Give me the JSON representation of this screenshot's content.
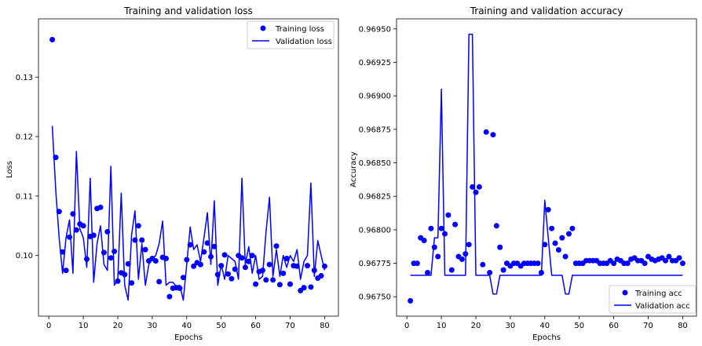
{
  "chart_data": [
    {
      "type": "line",
      "title": "Training and validation loss",
      "xlabel": "Epochs",
      "ylabel": "Loss",
      "xlim": [
        -3,
        84
      ],
      "ylim": [
        0.0898,
        0.1398
      ],
      "xticks": [
        0,
        10,
        20,
        30,
        40,
        50,
        60,
        70,
        80
      ],
      "yticks": [
        0.1,
        0.11,
        0.12,
        0.13
      ],
      "ytick_labels": [
        "0.10",
        "0.11",
        "0.12",
        "0.13"
      ],
      "grid": false,
      "legend_position": "top-right",
      "colors": {
        "series": "#0000ff"
      },
      "series": [
        {
          "name": "Training loss",
          "style": "markers",
          "x": [
            1,
            2,
            3,
            4,
            5,
            6,
            7,
            8,
            9,
            10,
            11,
            12,
            13,
            14,
            15,
            16,
            17,
            18,
            19,
            20,
            21,
            22,
            23,
            24,
            25,
            26,
            27,
            28,
            29,
            30,
            31,
            32,
            33,
            34,
            35,
            36,
            37,
            38,
            39,
            40,
            41,
            42,
            43,
            44,
            45,
            46,
            47,
            48,
            49,
            50,
            51,
            52,
            53,
            54,
            55,
            56,
            57,
            58,
            59,
            60,
            61,
            62,
            63,
            64,
            65,
            66,
            67,
            68,
            69,
            70,
            71,
            72,
            73,
            74,
            75,
            76,
            77,
            78,
            79,
            80
          ],
          "y": [
            0.1363,
            0.1165,
            0.1074,
            0.1006,
            0.0975,
            0.1031,
            0.107,
            0.1043,
            0.1053,
            0.105,
            0.0994,
            0.1032,
            0.1034,
            0.1079,
            0.1081,
            0.1005,
            0.104,
            0.0996,
            0.1007,
            0.0957,
            0.0971,
            0.0968,
            0.0986,
            0.0954,
            0.1026,
            0.105,
            0.1026,
            0.101,
            0.0991,
            0.0995,
            0.0991,
            0.0956,
            0.0997,
            0.0995,
            0.0931,
            0.0945,
            0.0946,
            0.0945,
            0.0963,
            0.0993,
            0.1018,
            0.0982,
            0.0988,
            0.0985,
            0.1006,
            0.1021,
            0.0998,
            0.1015,
            0.0968,
            0.0983,
            0.1001,
            0.0969,
            0.0961,
            0.0977,
            0.1,
            0.0996,
            0.098,
            0.099,
            0.1,
            0.0952,
            0.0973,
            0.0975,
            0.0959,
            0.0985,
            0.0959,
            0.1016,
            0.0951,
            0.097,
            0.0995,
            0.0952,
            0.0983,
            0.0982,
            0.0941,
            0.0946,
            0.0983,
            0.0947,
            0.0975,
            0.0962,
            0.0966,
            0.0982
          ]
        },
        {
          "name": "Validation loss",
          "style": "line",
          "x": [
            1,
            2,
            3,
            4,
            5,
            6,
            7,
            8,
            9,
            10,
            11,
            12,
            13,
            14,
            15,
            16,
            17,
            18,
            19,
            20,
            21,
            22,
            23,
            24,
            25,
            26,
            27,
            28,
            29,
            30,
            31,
            32,
            33,
            34,
            35,
            36,
            37,
            38,
            39,
            40,
            41,
            42,
            43,
            44,
            45,
            46,
            47,
            48,
            49,
            50,
            51,
            52,
            53,
            54,
            55,
            56,
            57,
            58,
            59,
            60,
            61,
            62,
            63,
            64,
            65,
            66,
            67,
            68,
            69,
            70,
            71,
            72,
            73,
            74,
            75,
            76,
            77,
            78,
            79,
            80
          ],
          "y": [
            0.1218,
            0.111,
            0.103,
            0.097,
            0.103,
            0.106,
            0.097,
            0.1175,
            0.1045,
            0.103,
            0.098,
            0.113,
            0.0955,
            0.102,
            0.105,
            0.0985,
            0.0975,
            0.115,
            0.095,
            0.096,
            0.1105,
            0.095,
            0.0925,
            0.1035,
            0.1075,
            0.096,
            0.102,
            0.095,
            0.0985,
            0.0995,
            0.1,
            0.102,
            0.1058,
            0.095,
            0.0955,
            0.0955,
            0.0948,
            0.095,
            0.0925,
            0.0985,
            0.1048,
            0.101,
            0.1018,
            0.099,
            0.103,
            0.1072,
            0.0985,
            0.1092,
            0.095,
            0.0985,
            0.096,
            0.1,
            0.0995,
            0.099,
            0.096,
            0.113,
            0.0985,
            0.1015,
            0.097,
            0.1,
            0.096,
            0.0965,
            0.104,
            0.1098,
            0.0965,
            0.101,
            0.0965,
            0.1,
            0.098,
            0.1,
            0.099,
            0.101,
            0.096,
            0.099,
            0.1,
            0.1122,
            0.0965,
            0.1025,
            0.1,
            0.0975
          ]
        }
      ]
    },
    {
      "type": "line",
      "title": "Training and validation accuracy",
      "xlabel": "Epochs",
      "ylabel": "Accuracy",
      "xlim": [
        -3,
        84
      ],
      "ylim": [
        0.967355,
        0.969575
      ],
      "xticks": [
        0,
        10,
        20,
        30,
        40,
        50,
        60,
        70,
        80
      ],
      "yticks": [
        0.9675,
        0.96775,
        0.968,
        0.96825,
        0.9685,
        0.96875,
        0.969,
        0.96925,
        0.9695
      ],
      "ytick_labels": [
        "0.96750",
        "0.96775",
        "0.96800",
        "0.96825",
        "0.96850",
        "0.96875",
        "0.96900",
        "0.96925",
        "0.96950"
      ],
      "grid": false,
      "legend_position": "bottom-right",
      "colors": {
        "series": "#0000ff"
      },
      "series": [
        {
          "name": "Training acc",
          "style": "markers",
          "x": [
            1,
            2,
            3,
            4,
            5,
            6,
            7,
            8,
            9,
            10,
            11,
            12,
            13,
            14,
            15,
            16,
            17,
            18,
            19,
            20,
            21,
            22,
            23,
            24,
            25,
            26,
            27,
            28,
            29,
            30,
            31,
            32,
            33,
            34,
            35,
            36,
            37,
            38,
            39,
            40,
            41,
            42,
            43,
            44,
            45,
            46,
            47,
            48,
            49,
            50,
            51,
            52,
            53,
            54,
            55,
            56,
            57,
            58,
            59,
            60,
            61,
            62,
            63,
            64,
            65,
            66,
            67,
            68,
            69,
            70,
            71,
            72,
            73,
            74,
            75,
            76,
            77,
            78,
            79,
            80
          ],
          "y": [
            0.96747,
            0.96775,
            0.96775,
            0.96794,
            0.96792,
            0.96768,
            0.96801,
            0.96787,
            0.9678,
            0.96801,
            0.96797,
            0.96811,
            0.9677,
            0.96804,
            0.9678,
            0.96778,
            0.96782,
            0.96789,
            0.96832,
            0.96828,
            0.96832,
            0.96774,
            0.96873,
            0.96768,
            0.96871,
            0.96803,
            0.96787,
            0.9677,
            0.96775,
            0.96773,
            0.96775,
            0.96775,
            0.96773,
            0.96775,
            0.96775,
            0.96775,
            0.96775,
            0.96775,
            0.96768,
            0.96789,
            0.96815,
            0.96801,
            0.9679,
            0.96785,
            0.96794,
            0.9678,
            0.96797,
            0.96801,
            0.96775,
            0.96775,
            0.96775,
            0.96777,
            0.96777,
            0.96777,
            0.96777,
            0.96775,
            0.96775,
            0.96775,
            0.96777,
            0.96775,
            0.96778,
            0.96777,
            0.96775,
            0.96775,
            0.96778,
            0.96779,
            0.96777,
            0.96777,
            0.96775,
            0.9678,
            0.96778,
            0.96777,
            0.96778,
            0.96779,
            0.96777,
            0.9678,
            0.96777,
            0.96777,
            0.96779,
            0.96775
          ]
        },
        {
          "name": "Validation acc",
          "style": "line",
          "x": [
            1,
            2,
            3,
            4,
            5,
            6,
            7,
            8,
            9,
            10,
            11,
            12,
            13,
            14,
            15,
            16,
            17,
            18,
            19,
            20,
            21,
            22,
            23,
            24,
            25,
            26,
            27,
            28,
            29,
            30,
            31,
            32,
            33,
            34,
            35,
            36,
            37,
            38,
            39,
            40,
            41,
            42,
            43,
            44,
            45,
            46,
            47,
            48,
            49,
            50,
            51,
            52,
            53,
            54,
            55,
            56,
            57,
            58,
            59,
            60,
            61,
            62,
            63,
            64,
            65,
            66,
            67,
            68,
            69,
            70,
            71,
            72,
            73,
            74,
            75,
            76,
            77,
            78,
            79,
            80
          ],
          "y": [
            0.96766,
            0.96766,
            0.96766,
            0.96766,
            0.96766,
            0.96766,
            0.96766,
            0.96794,
            0.96794,
            0.96905,
            0.96766,
            0.96766,
            0.96766,
            0.96766,
            0.96766,
            0.96766,
            0.96766,
            0.96946,
            0.96946,
            0.96766,
            0.96766,
            0.96766,
            0.96766,
            0.96766,
            0.96752,
            0.96752,
            0.96766,
            0.96766,
            0.96766,
            0.96766,
            0.96766,
            0.96766,
            0.96766,
            0.96766,
            0.96766,
            0.96766,
            0.96766,
            0.96766,
            0.96766,
            0.96822,
            0.96794,
            0.96766,
            0.96766,
            0.96766,
            0.96766,
            0.96752,
            0.96752,
            0.96766,
            0.96766,
            0.96766,
            0.96766,
            0.96766,
            0.96766,
            0.96766,
            0.96766,
            0.96766,
            0.96766,
            0.96766,
            0.96766,
            0.96766,
            0.96766,
            0.96766,
            0.96766,
            0.96766,
            0.96766,
            0.96766,
            0.96766,
            0.96766,
            0.96766,
            0.96766,
            0.96766,
            0.96766,
            0.96766,
            0.96766,
            0.96766,
            0.96766,
            0.96766,
            0.96766,
            0.96766,
            0.96766
          ]
        }
      ]
    }
  ]
}
